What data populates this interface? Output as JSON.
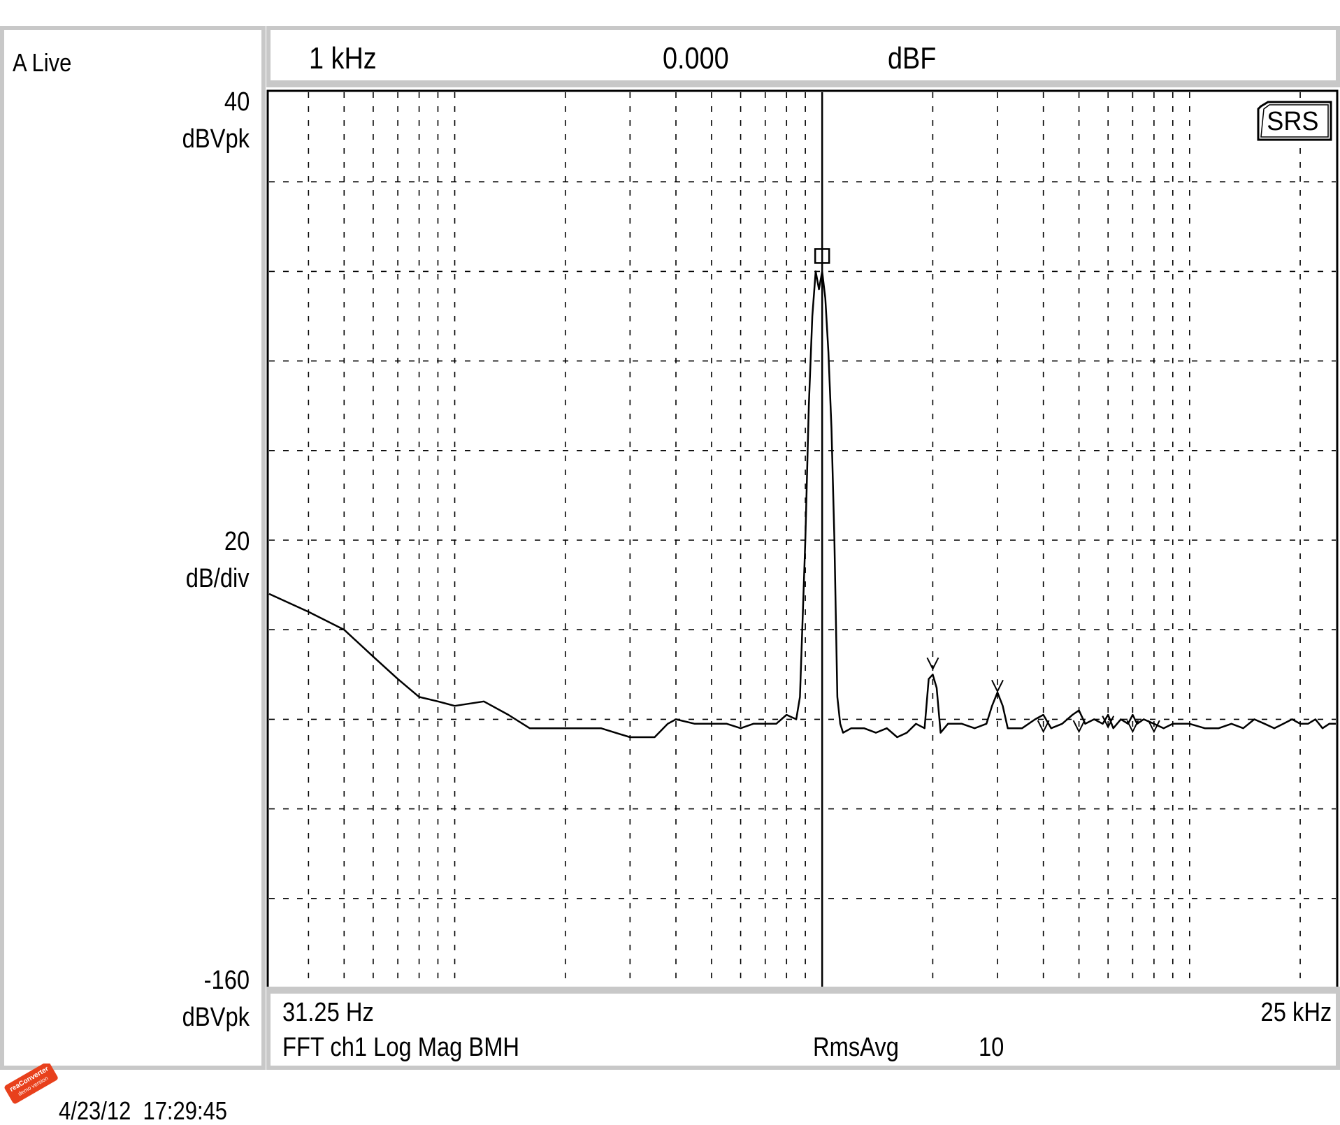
{
  "left_panel": {
    "status": "A Live",
    "top_value": "40",
    "top_unit": "dBVpk",
    "scale_value": "20",
    "scale_unit": "dB/div",
    "bottom_value": "-160",
    "bottom_unit": "dBVpk"
  },
  "marker_bar": {
    "frequency": "1 kHz",
    "value": "0.000",
    "unit": "dBF"
  },
  "bottom_bar": {
    "start_freq": "31.25 Hz",
    "stop_freq": "25 kHz",
    "measurement": "FFT ch1 Log Mag BMH",
    "avg_mode": "RmsAvg",
    "avg_count": "10"
  },
  "logo": "SRS",
  "timestamp": "4/23/12  17:29:45",
  "badge": {
    "line1": "reaConverter",
    "line2": "demo version",
    "color": "#e8401c"
  },
  "colors": {
    "frame": "#c8c8c8",
    "trace": "#000000",
    "background": "#ffffff"
  },
  "chart_data": {
    "type": "line",
    "title": "",
    "xlabel": "",
    "ylabel": "",
    "x_scale": "log",
    "xlim": [
      31.25,
      25000
    ],
    "ylim": [
      -160,
      40
    ],
    "y_div": 20,
    "grid": true,
    "marker": {
      "x": 1000,
      "y": 0
    },
    "harmonic_markers": [
      {
        "x": 2000,
        "y": -90
      },
      {
        "x": 3000,
        "y": -95
      },
      {
        "x": 4000,
        "y": -104
      },
      {
        "x": 5000,
        "y": -104
      },
      {
        "x": 6000,
        "y": -103
      },
      {
        "x": 7000,
        "y": -104
      },
      {
        "x": 8000,
        "y": -104
      }
    ],
    "series": [
      {
        "x": [
          31.25,
          40,
          50,
          60,
          70,
          80,
          90,
          100,
          120,
          140,
          160,
          200,
          250,
          300,
          350,
          380,
          400,
          450,
          500,
          550,
          600,
          650,
          700,
          750,
          800,
          850,
          870,
          900,
          920,
          940,
          960,
          980,
          1000,
          1020,
          1040,
          1060,
          1080,
          1100,
          1120,
          1140,
          1200,
          1300,
          1400,
          1500,
          1600,
          1700,
          1800,
          1900,
          1950,
          2000,
          2050,
          2100,
          2200,
          2400,
          2600,
          2800,
          2900,
          3000,
          3100,
          3200,
          3500,
          3800,
          4000,
          4200,
          4500,
          4800,
          5000,
          5200,
          5500,
          5800,
          6000,
          6200,
          6500,
          6800,
          7000,
          7200,
          7500,
          8000,
          8500,
          9000,
          10000,
          11000,
          12000,
          13000,
          14000,
          15000,
          16000,
          17000,
          18000,
          19000,
          20000,
          21000,
          22000,
          23000,
          24000,
          25000
        ],
        "y": [
          -72,
          -76,
          -80,
          -86,
          -91,
          -95,
          -96,
          -97,
          -96,
          -99,
          -102,
          -102,
          -102,
          -104,
          -104,
          -101,
          -100,
          -101,
          -101,
          -101,
          -102,
          -101,
          -101,
          -101,
          -99,
          -100,
          -95,
          -60,
          -30,
          -10,
          0,
          -4,
          0,
          -6,
          -18,
          -35,
          -60,
          -95,
          -101,
          -103,
          -102,
          -102,
          -103,
          -102,
          -104,
          -103,
          -101,
          -102,
          -91,
          -90,
          -93,
          -103,
          -101,
          -101,
          -102,
          -101,
          -97,
          -94,
          -97,
          -102,
          -102,
          -100,
          -99,
          -102,
          -101,
          -99,
          -98,
          -101,
          -100,
          -101,
          -99,
          -102,
          -100,
          -101,
          -99,
          -101,
          -100,
          -101,
          -102,
          -101,
          -101,
          -102,
          -102,
          -101,
          -102,
          -100,
          -101,
          -102,
          -101,
          -100,
          -101,
          -101,
          -100,
          -102,
          -101,
          -101
        ]
      }
    ]
  }
}
